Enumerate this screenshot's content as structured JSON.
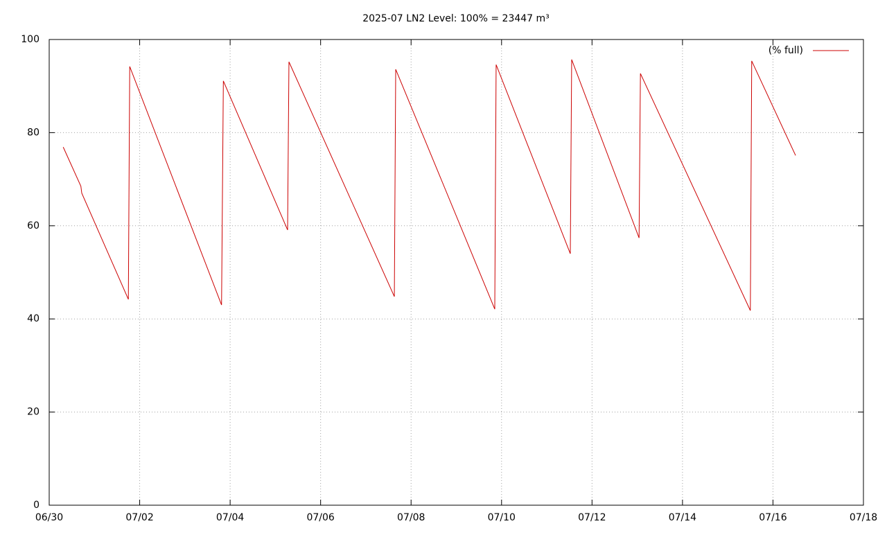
{
  "chart_data": {
    "type": "line",
    "title": "2025-07 LN2 Level: 100% = 23447 m³",
    "x": [
      0.31,
      0.7,
      0.72,
      1.75,
      1.78,
      3.81,
      3.85,
      5.27,
      5.3,
      7.63,
      7.66,
      9.85,
      9.88,
      11.52,
      11.55,
      13.04,
      13.07,
      15.5,
      15.53,
      16.5
    ],
    "series": [
      {
        "name": "(% full)",
        "color": "#cc0000",
        "values": [
          76.9,
          68.5,
          67.0,
          44.2,
          94.2,
          43.0,
          91.1,
          59.1,
          95.2,
          44.8,
          93.6,
          42.1,
          94.6,
          54.0,
          95.7,
          57.4,
          92.7,
          41.8,
          95.4,
          75.1
        ]
      }
    ],
    "xlim": [
      0,
      18
    ],
    "xticks": [
      {
        "value": 0,
        "label": "06/30"
      },
      {
        "value": 2,
        "label": "07/02"
      },
      {
        "value": 4,
        "label": "07/04"
      },
      {
        "value": 6,
        "label": "07/06"
      },
      {
        "value": 8,
        "label": "07/08"
      },
      {
        "value": 10,
        "label": "07/10"
      },
      {
        "value": 12,
        "label": "07/12"
      },
      {
        "value": 14,
        "label": "07/14"
      },
      {
        "value": 16,
        "label": "07/16"
      },
      {
        "value": 18,
        "label": "07/18"
      }
    ],
    "ylim": [
      0,
      100
    ],
    "yticks": [
      0,
      20,
      40,
      60,
      80,
      100
    ],
    "grid": true,
    "legend": "top-right"
  }
}
